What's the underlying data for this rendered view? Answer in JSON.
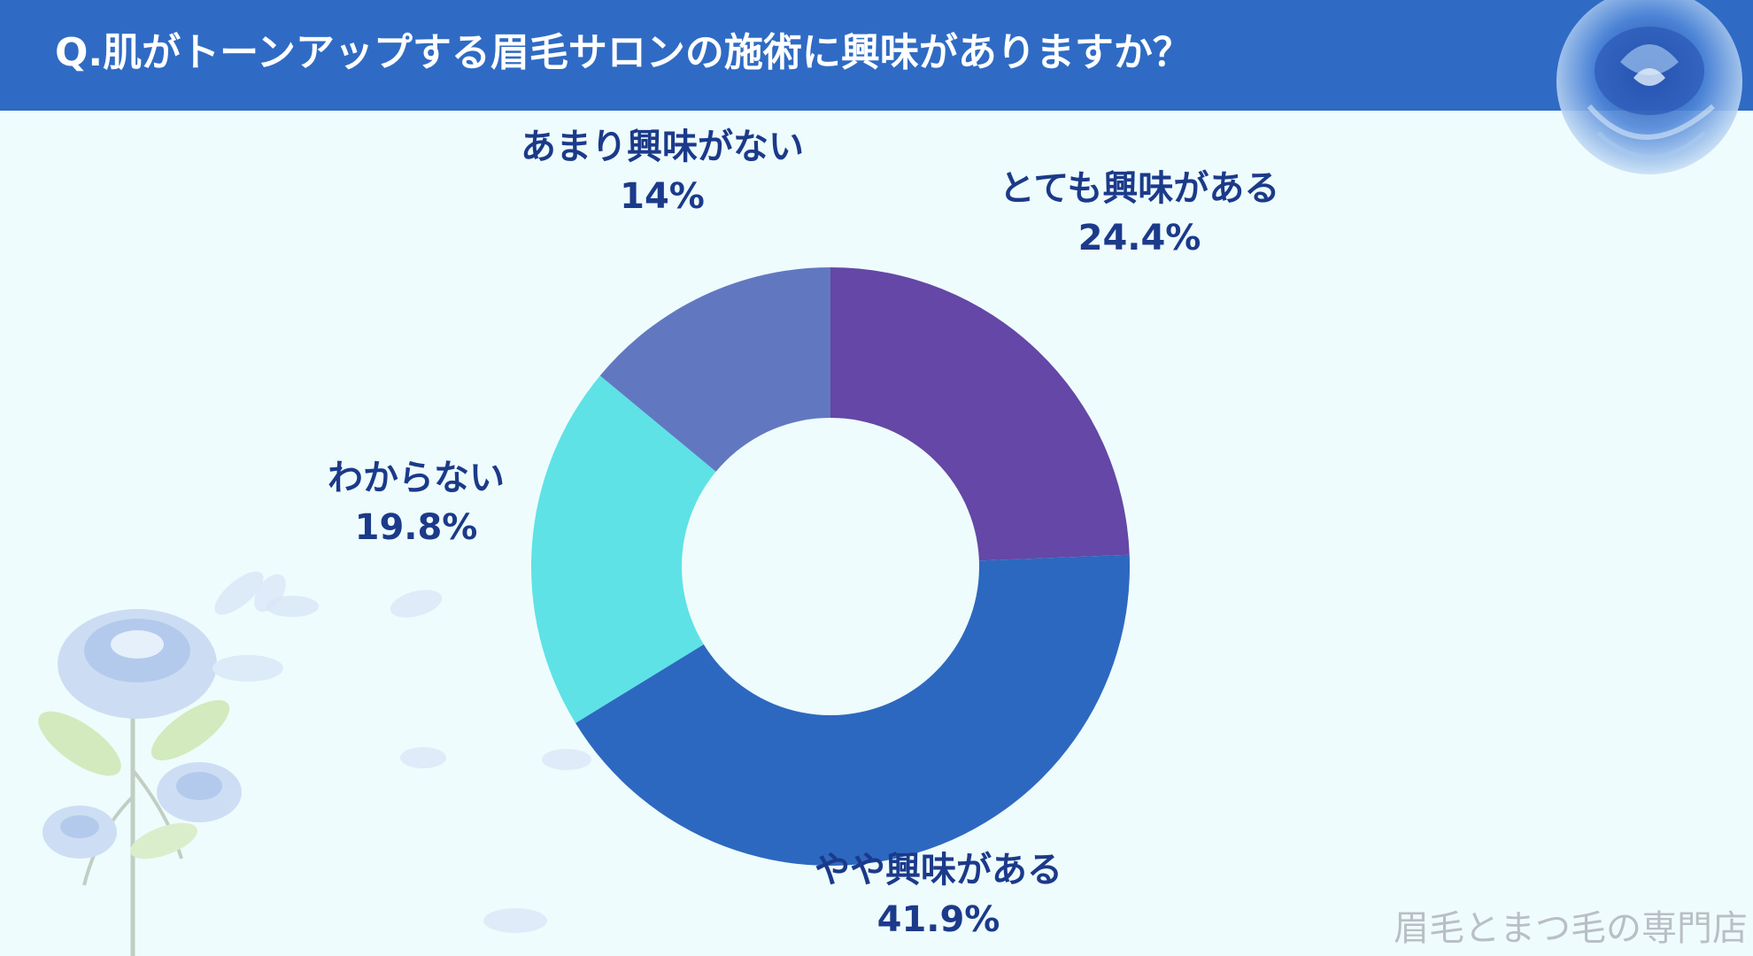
{
  "title": "Q.肌がトーンアップする眉毛サロンの施術に興味がありますか？",
  "watermark": "眉毛とまつ毛の専門店",
  "colors": {
    "header": "#2f6bc4",
    "background": "#effcfd",
    "label_text": "#1b3a8a"
  },
  "chart_data": {
    "type": "pie",
    "donut": true,
    "title": "",
    "slices": [
      {
        "label": "とても興味がある",
        "value_label": "24.4%",
        "value": 24.4,
        "color": "#6447a6"
      },
      {
        "label": "やや興味がある",
        "value_label": "41.9%",
        "value": 41.9,
        "color": "#2d68c0"
      },
      {
        "label": "わからない",
        "value_label": "19.8%",
        "value": 19.8,
        "color": "#5ee2e6"
      },
      {
        "label": "あまり興味がない",
        "value_label": "14%",
        "value": 14,
        "color": "#6178c1"
      }
    ]
  }
}
